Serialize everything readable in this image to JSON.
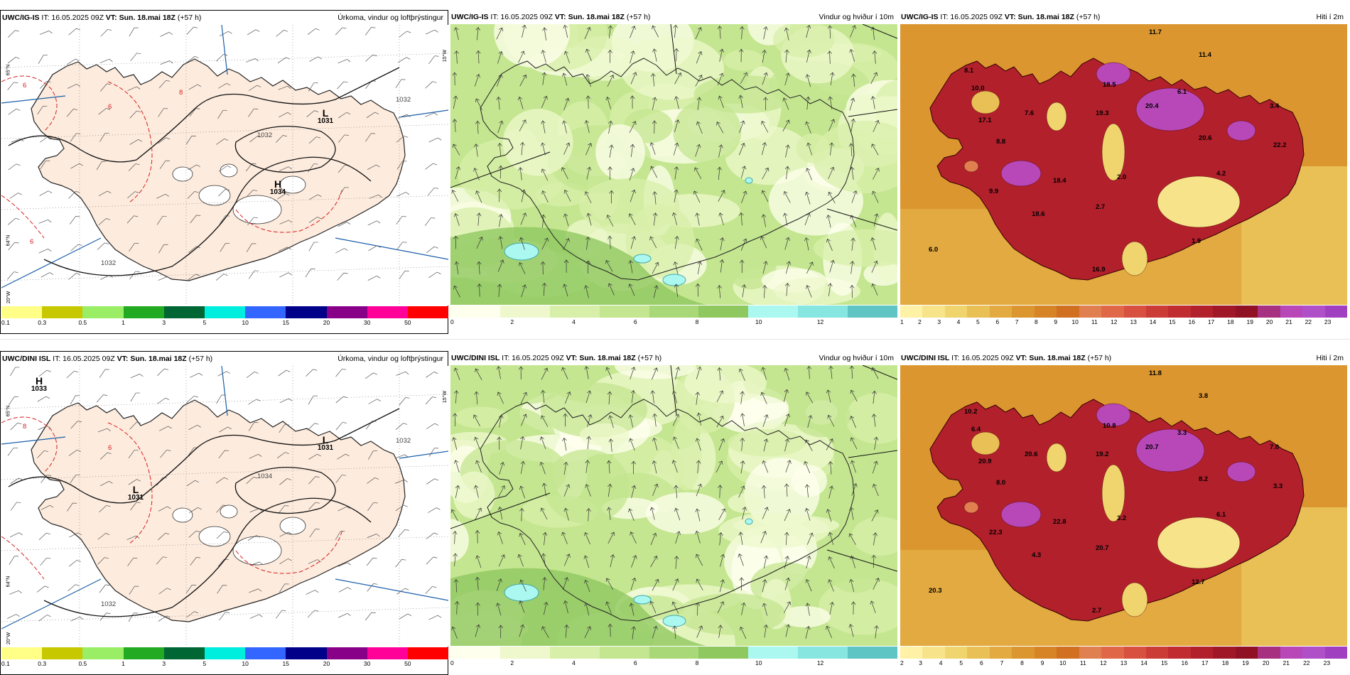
{
  "panels": [
    {
      "model": "UWC/IG-IS",
      "issued": "IT: 16.05.2025 09Z",
      "valid_label": "VT:",
      "valid": "Sun. 18.mai 18Z",
      "lead": "(+57 h)",
      "title": "Úrkoma, vindur og loftþrýstingur",
      "ticks": [
        "0.1",
        "0.3",
        "0.5",
        "1",
        "3",
        "5",
        "10",
        "15",
        "20",
        "30",
        "50"
      ],
      "colors": [
        "#ffff88",
        "#c8c800",
        "#99ee66",
        "#22aa22",
        "#006633",
        "#00eedd",
        "#3366ff",
        "#000088",
        "#880088",
        "#ff0099",
        "#ff0000"
      ],
      "pressure": [
        {
          "symbol": "L",
          "value": "1031"
        },
        {
          "symbol": "H",
          "value": "1034"
        }
      ],
      "isobars": [
        "1032",
        "1032",
        "1032"
      ],
      "precip_labels": [
        "6",
        "6",
        "8",
        "6"
      ]
    },
    {
      "model": "UWC/IG-IS",
      "issued": "IT: 16.05.2025 09Z",
      "valid_label": "VT:",
      "valid": "Sun. 18.mai 18Z",
      "lead": "(+57 h)",
      "title": "Vindur og hviður í 10m",
      "ticks": [
        "0",
        "2",
        "4",
        "6",
        "8",
        "10",
        "12"
      ],
      "colors": [
        "#ffffee",
        "#eef8cc",
        "#d8efaa",
        "#c4e690",
        "#a8d878",
        "#90c860",
        "#aaf8f0",
        "#88e6e0",
        "#5ec4c4"
      ]
    },
    {
      "model": "UWC/IG-IS",
      "issued": "IT: 16.05.2025 09Z",
      "valid_label": "VT:",
      "valid": "Sun. 18.mai 18Z",
      "lead": "(+57 h)",
      "title": "Hiti í 2m",
      "ticks": [
        "1",
        "2",
        "3",
        "4",
        "5",
        "6",
        "7",
        "8",
        "9",
        "10",
        "11",
        "12",
        "13",
        "14",
        "15",
        "16",
        "17",
        "18",
        "19",
        "20",
        "21",
        "22",
        "23"
      ],
      "colors": [
        "#fff2a6",
        "#f7e48a",
        "#f0d46e",
        "#e8c056",
        "#e2aa40",
        "#dc9630",
        "#d68426",
        "#d07020",
        "#e08050",
        "#e06848",
        "#d85040",
        "#cc3c36",
        "#c02c30",
        "#b2202c",
        "#a01828",
        "#901024",
        "#a83080",
        "#b848b8",
        "#b050c8",
        "#a040c0"
      ],
      "temps": [
        "11.7",
        "11.4",
        "8.1",
        "10.0",
        "18.5",
        "17.1",
        "7.6",
        "19.3",
        "20.4",
        "8.8",
        "20.6",
        "18.4",
        "2.0",
        "2.7",
        "4.2",
        "22.2",
        "9.9",
        "18.6",
        "1.9",
        "6.0",
        "16.9",
        "3.4",
        "6.1"
      ]
    },
    {
      "model": "UWC/DINI ISL",
      "issued": "IT: 16.05.2025 09Z",
      "valid_label": "VT:",
      "valid": "Sun. 18.mai 18Z",
      "lead": "(+57 h)",
      "title": "Úrkoma, vindur og loftþrýstingur",
      "ticks": [
        "0.1",
        "0.3",
        "0.5",
        "1",
        "3",
        "5",
        "10",
        "15",
        "20",
        "30",
        "50"
      ],
      "colors": [
        "#ffff88",
        "#c8c800",
        "#99ee66",
        "#22aa22",
        "#006633",
        "#00eedd",
        "#3366ff",
        "#000088",
        "#880088",
        "#ff0099",
        "#ff0000"
      ],
      "pressure": [
        {
          "symbol": "H",
          "value": "1033"
        },
        {
          "symbol": "L",
          "value": "1031"
        },
        {
          "symbol": "L",
          "value": "1031"
        }
      ],
      "isobars": [
        "1032",
        "1032",
        "1034"
      ],
      "precip_labels": [
        "8",
        "6"
      ]
    },
    {
      "model": "UWC/DINI ISL",
      "issued": "IT: 16.05.2025 09Z",
      "valid_label": "VT:",
      "valid": "Sun. 18.mai 18Z",
      "lead": "(+57 h)",
      "title": "Vindur og hviður í 10m",
      "ticks": [
        "0",
        "2",
        "4",
        "6",
        "8",
        "10",
        "12"
      ],
      "colors": [
        "#ffffee",
        "#eef8cc",
        "#d8efaa",
        "#c4e690",
        "#a8d878",
        "#90c860",
        "#aaf8f0",
        "#88e6e0",
        "#5ec4c4"
      ]
    },
    {
      "model": "UWC/DINI ISL",
      "issued": "IT: 16.05.2025 09Z",
      "valid_label": "VT:",
      "valid": "Sun. 18.mai 18Z",
      "lead": "(+57 h)",
      "title": "Hiti í 2m",
      "ticks": [
        "2",
        "3",
        "4",
        "5",
        "6",
        "7",
        "8",
        "9",
        "10",
        "11",
        "12",
        "13",
        "14",
        "15",
        "16",
        "17",
        "18",
        "19",
        "20",
        "21",
        "22",
        "23"
      ],
      "colors": [
        "#fff2a6",
        "#f7e48a",
        "#f0d46e",
        "#e8c056",
        "#e2aa40",
        "#dc9630",
        "#d68426",
        "#d07020",
        "#e08050",
        "#e06848",
        "#d85040",
        "#cc3c36",
        "#c02c30",
        "#b2202c",
        "#a01828",
        "#901024",
        "#a83080",
        "#b848b8",
        "#b050c8",
        "#a040c0"
      ],
      "temps": [
        "11.8",
        "3.8",
        "10.2",
        "6.4",
        "10.8",
        "20.9",
        "20.6",
        "19.2",
        "20.7",
        "8.0",
        "8.2",
        "22.8",
        "3.2",
        "20.7",
        "6.1",
        "3.3",
        "22.3",
        "4.3",
        "12.7",
        "20.3",
        "2.7",
        "7.0",
        "3.3"
      ]
    }
  ],
  "graticule_labels": [
    "65°N",
    "64°N",
    "20°W",
    "15°W"
  ]
}
